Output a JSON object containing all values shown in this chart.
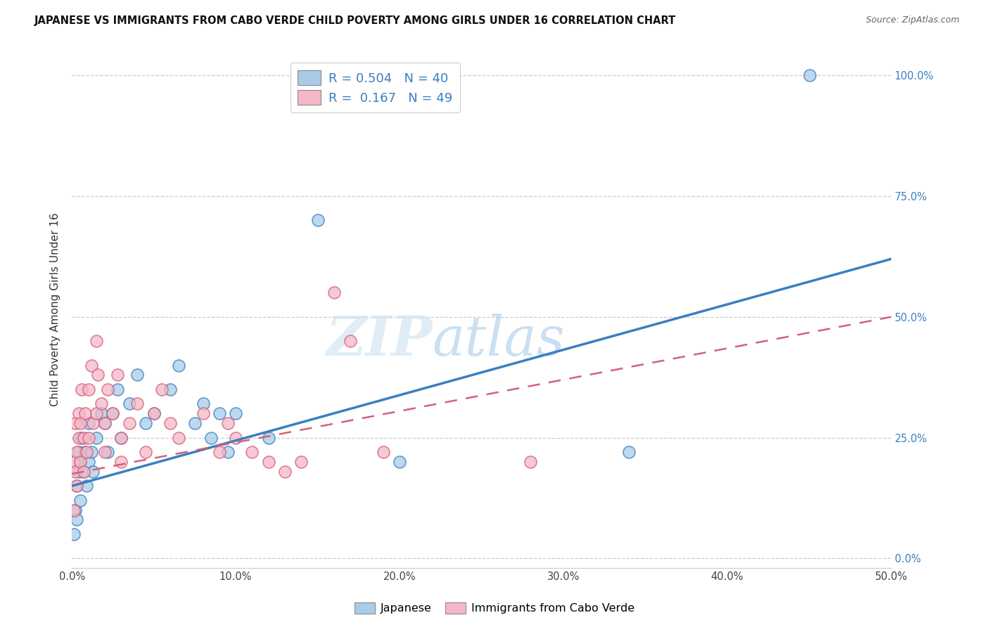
{
  "title": "JAPANESE VS IMMIGRANTS FROM CABO VERDE CHILD POVERTY AMONG GIRLS UNDER 16 CORRELATION CHART",
  "source": "Source: ZipAtlas.com",
  "ylabel": "Child Poverty Among Girls Under 16",
  "xlim": [
    0,
    0.5
  ],
  "ylim": [
    -0.02,
    1.05
  ],
  "color_japanese": "#a8cce8",
  "color_cabo": "#f4b8c8",
  "color_line_japanese": "#3a7fc1",
  "color_line_cabo": "#d4607a",
  "watermark_zip": "ZIP",
  "watermark_atlas": "atlas",
  "line_jap_x0": 0.0,
  "line_jap_y0": 0.15,
  "line_jap_x1": 0.5,
  "line_jap_y1": 0.62,
  "line_cabo_x0": 0.0,
  "line_cabo_y0": 0.175,
  "line_cabo_x1": 0.5,
  "line_cabo_y1": 0.5,
  "japanese_x": [
    0.001,
    0.002,
    0.003,
    0.003,
    0.004,
    0.004,
    0.005,
    0.005,
    0.006,
    0.007,
    0.008,
    0.009,
    0.01,
    0.01,
    0.012,
    0.013,
    0.015,
    0.018,
    0.02,
    0.022,
    0.025,
    0.028,
    0.03,
    0.035,
    0.04,
    0.045,
    0.05,
    0.06,
    0.065,
    0.075,
    0.08,
    0.085,
    0.09,
    0.095,
    0.1,
    0.12,
    0.15,
    0.2,
    0.34,
    0.45
  ],
  "japanese_y": [
    0.05,
    0.1,
    0.15,
    0.08,
    0.18,
    0.22,
    0.12,
    0.2,
    0.25,
    0.18,
    0.22,
    0.15,
    0.2,
    0.28,
    0.22,
    0.18,
    0.25,
    0.3,
    0.28,
    0.22,
    0.3,
    0.35,
    0.25,
    0.32,
    0.38,
    0.28,
    0.3,
    0.35,
    0.4,
    0.28,
    0.32,
    0.25,
    0.3,
    0.22,
    0.3,
    0.25,
    0.7,
    0.2,
    0.22,
    1.0
  ],
  "cabo_x": [
    0.001,
    0.001,
    0.002,
    0.002,
    0.003,
    0.003,
    0.004,
    0.004,
    0.005,
    0.005,
    0.006,
    0.007,
    0.007,
    0.008,
    0.009,
    0.01,
    0.01,
    0.012,
    0.013,
    0.015,
    0.015,
    0.016,
    0.018,
    0.02,
    0.02,
    0.022,
    0.025,
    0.028,
    0.03,
    0.03,
    0.035,
    0.04,
    0.045,
    0.05,
    0.055,
    0.06,
    0.065,
    0.08,
    0.09,
    0.095,
    0.1,
    0.11,
    0.12,
    0.13,
    0.14,
    0.16,
    0.17,
    0.19,
    0.28
  ],
  "cabo_y": [
    0.2,
    0.1,
    0.28,
    0.18,
    0.22,
    0.15,
    0.3,
    0.25,
    0.28,
    0.2,
    0.35,
    0.25,
    0.18,
    0.3,
    0.22,
    0.35,
    0.25,
    0.4,
    0.28,
    0.45,
    0.3,
    0.38,
    0.32,
    0.28,
    0.22,
    0.35,
    0.3,
    0.38,
    0.25,
    0.2,
    0.28,
    0.32,
    0.22,
    0.3,
    0.35,
    0.28,
    0.25,
    0.3,
    0.22,
    0.28,
    0.25,
    0.22,
    0.2,
    0.18,
    0.2,
    0.55,
    0.45,
    0.22,
    0.2
  ]
}
